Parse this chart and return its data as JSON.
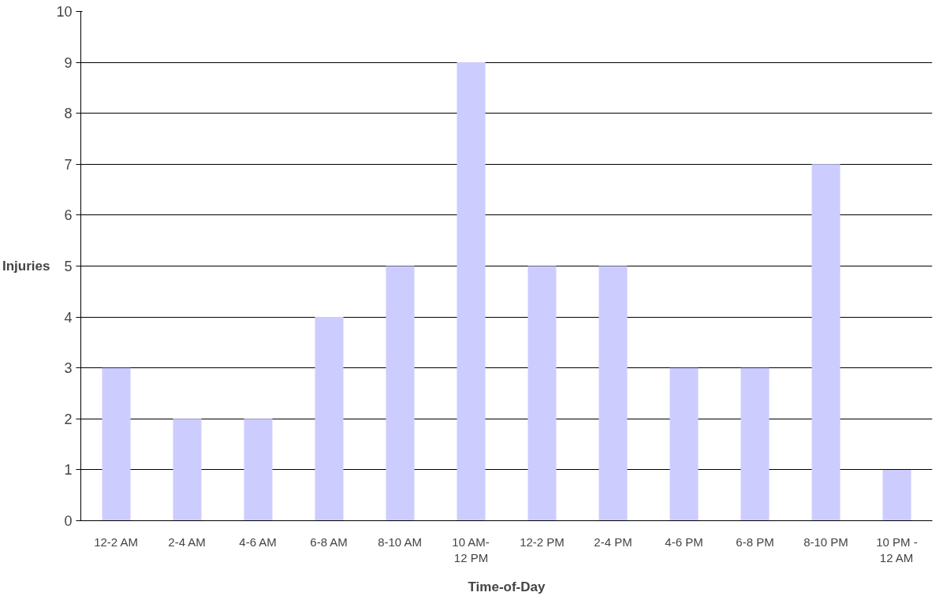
{
  "chart_data": {
    "type": "bar",
    "xlabel": "Time-of-Day",
    "ylabel": "Injuries",
    "categories": [
      "12-2 AM",
      "2-4 AM",
      "4-6 AM",
      "6-8 AM",
      "8-10 AM",
      "10 AM-\n12 PM",
      "12-2 PM",
      "2-4 PM",
      "4-6 PM",
      "6-8 PM",
      "8-10 PM",
      "10 PM -\n12 AM"
    ],
    "values": [
      3,
      2,
      2,
      4,
      5,
      9,
      5,
      5,
      3,
      3,
      7,
      1
    ],
    "color": "#ccccff",
    "ylim": [
      0,
      10
    ],
    "yticks": [
      0,
      1,
      2,
      3,
      4,
      5,
      6,
      7,
      8,
      9,
      10
    ],
    "grid": "y"
  }
}
